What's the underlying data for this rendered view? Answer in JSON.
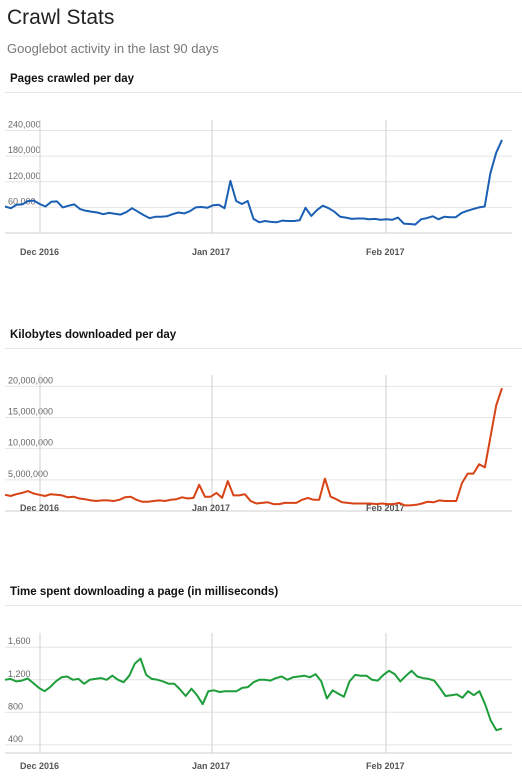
{
  "header": {
    "title": "Crawl Stats",
    "subtitle": "Googlebot activity in the last 90 days"
  },
  "x_tick_labels": [
    "Dec 2016",
    "Jan 2017",
    "Feb 2017"
  ],
  "chart_data": [
    {
      "type": "line",
      "title": "Pages crawled per day",
      "series": [
        {
          "color": "#1a5fb4",
          "values": [
            62000,
            58000,
            66000,
            67000,
            75000,
            76000,
            68000,
            62000,
            73000,
            74000,
            60000,
            64000,
            67000,
            56000,
            52000,
            50000,
            48000,
            44000,
            47000,
            45000,
            43000,
            49000,
            58000,
            50000,
            42000,
            35000,
            38000,
            38000,
            39000,
            44000,
            48000,
            46000,
            51000,
            60000,
            61000,
            59000,
            65000,
            66000,
            58000,
            122000,
            75000,
            68000,
            75000,
            33000,
            25000,
            28000,
            26000,
            25000,
            29000,
            28000,
            28000,
            30000,
            59000,
            40000,
            54000,
            64000,
            58000,
            50000,
            38000,
            36000,
            33000,
            34000,
            34000,
            32000,
            33000,
            31000,
            32000,
            31000,
            36000,
            22000,
            21000,
            20000,
            32000,
            35000,
            39000,
            32000,
            38000,
            37000,
            37000,
            47000,
            52000,
            56000,
            60000,
            62000,
            140000,
            188000,
            218000
          ]
        }
      ],
      "ylim": [
        0,
        260000
      ],
      "yticks": [
        60000,
        120000,
        180000,
        240000
      ],
      "ytick_labels": [
        "60,000",
        "120,000",
        "180,000",
        "240,000"
      ]
    },
    {
      "type": "line",
      "title": "Kilobytes downloaded per day",
      "series": [
        {
          "color": "#d84315",
          "values": [
            2600000,
            2400000,
            2700000,
            2900000,
            3200000,
            2800000,
            2600000,
            2400000,
            2700000,
            2600000,
            2500000,
            2200000,
            2300000,
            2000000,
            1900000,
            1700000,
            1600000,
            1700000,
            1700000,
            1600000,
            1800000,
            2200000,
            2300000,
            1800000,
            1500000,
            1500000,
            1600000,
            1700000,
            1600000,
            1800000,
            1900000,
            2200000,
            2000000,
            2100000,
            4200000,
            2300000,
            2300000,
            2900000,
            2100000,
            4800000,
            2500000,
            2500000,
            2700000,
            1600000,
            1200000,
            1300000,
            1400000,
            1100000,
            1100000,
            1300000,
            1300000,
            1300000,
            1800000,
            2100000,
            1800000,
            1800000,
            5200000,
            2300000,
            1900000,
            1400000,
            1300000,
            1200000,
            1200000,
            1200000,
            1200000,
            1100000,
            1200000,
            1100000,
            1100000,
            1300000,
            900000,
            900000,
            1000000,
            1200000,
            1500000,
            1400000,
            1700000,
            1600000,
            1600000,
            1600000,
            4500000,
            6000000,
            6000000,
            7500000,
            7000000,
            12000000,
            17000000,
            19700000
          ]
        }
      ],
      "ylim": [
        0,
        21500000
      ],
      "yticks": [
        5000000,
        10000000,
        15000000,
        20000000
      ],
      "ytick_labels": [
        "5,000,000",
        "10,000,000",
        "15,000,000",
        "20,000,000"
      ]
    },
    {
      "type": "line",
      "title": "Time spent downloading a page (in milliseconds)",
      "series": [
        {
          "color": "#1e9e3a",
          "values": [
            1200,
            1210,
            1180,
            1190,
            1215,
            1160,
            1100,
            1060,
            1110,
            1180,
            1230,
            1240,
            1200,
            1210,
            1150,
            1200,
            1210,
            1220,
            1200,
            1250,
            1200,
            1170,
            1250,
            1400,
            1460,
            1260,
            1210,
            1200,
            1180,
            1150,
            1150,
            1080,
            1000,
            1090,
            1010,
            900,
            1060,
            1070,
            1050,
            1060,
            1060,
            1060,
            1100,
            1110,
            1170,
            1200,
            1200,
            1190,
            1220,
            1240,
            1200,
            1230,
            1240,
            1250,
            1230,
            1270,
            1180,
            970,
            1070,
            1030,
            990,
            1180,
            1260,
            1250,
            1250,
            1200,
            1190,
            1260,
            1310,
            1270,
            1180,
            1250,
            1310,
            1240,
            1220,
            1210,
            1190,
            1100,
            1000,
            1010,
            1020,
            980,
            1060,
            1010,
            1060,
            900,
            700,
            580,
            600
          ]
        }
      ],
      "ylim": [
        300,
        1750
      ],
      "yticks": [
        400,
        800,
        1200,
        1600
      ],
      "ytick_labels": [
        "400",
        "800",
        "1,200",
        "1,600"
      ]
    }
  ]
}
